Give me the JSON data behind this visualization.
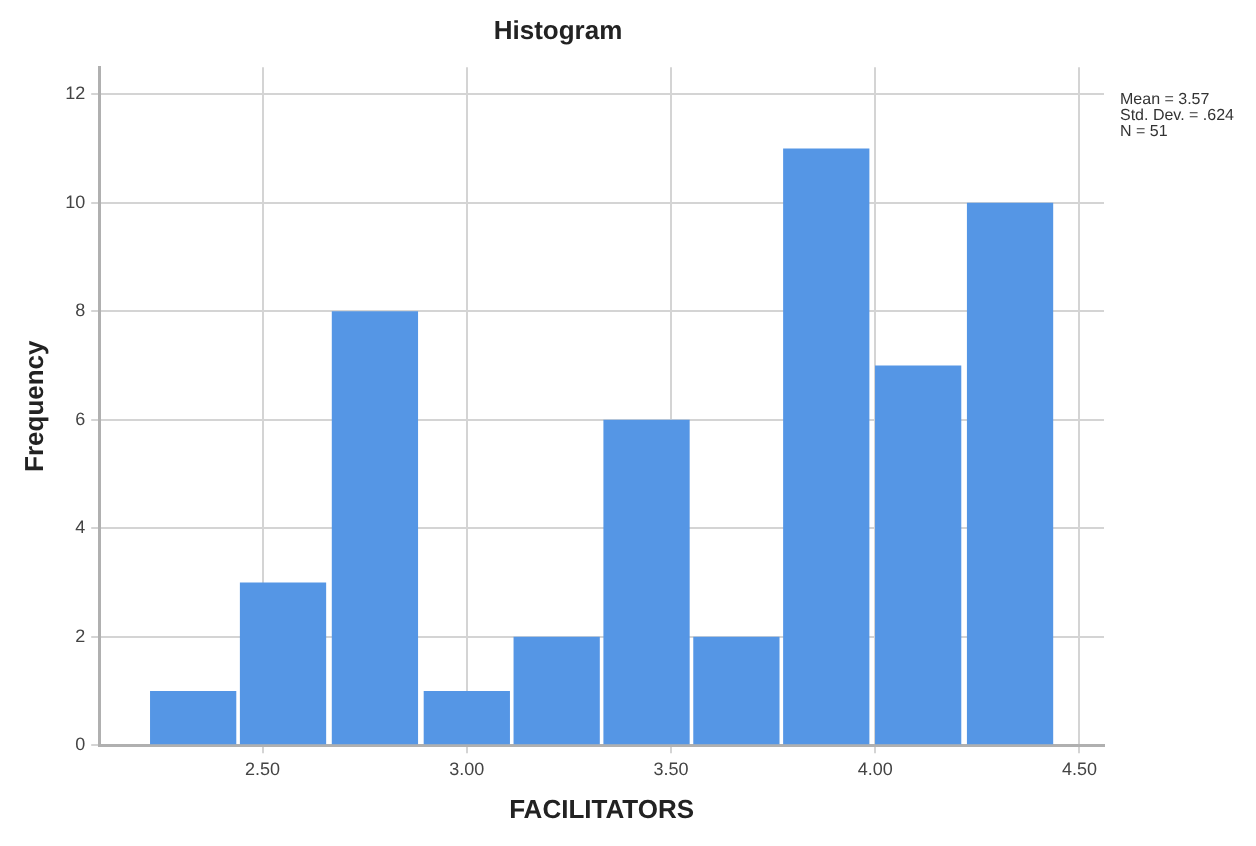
{
  "chart_data": {
    "type": "histogram",
    "title": "Histogram",
    "xlabel": "FACILITATORS",
    "ylabel": "Frequency",
    "bins": [
      2.22,
      2.44,
      2.66,
      2.89,
      3.11,
      3.33,
      3.55,
      3.77,
      3.99,
      4.22,
      4.44
    ],
    "values": [
      1,
      3,
      8,
      1,
      2,
      6,
      2,
      11,
      7,
      10
    ],
    "color": "#5596e5",
    "xlim": [
      2.1,
      4.56
    ],
    "ylim": [
      0,
      12.5
    ],
    "xticks": [
      {
        "value": 2.5,
        "label": "2.50"
      },
      {
        "value": 3,
        "label": "3.00"
      },
      {
        "value": 3.5,
        "label": "3.50"
      },
      {
        "value": 4,
        "label": "4.00"
      },
      {
        "value": 4.5,
        "label": "4.50"
      }
    ],
    "yticks": [
      0,
      2,
      4,
      6,
      8,
      10,
      12
    ],
    "grid": true,
    "annotations": [
      "Mean = 3.57",
      "Std. Dev. = .624",
      "N = 51"
    ]
  }
}
